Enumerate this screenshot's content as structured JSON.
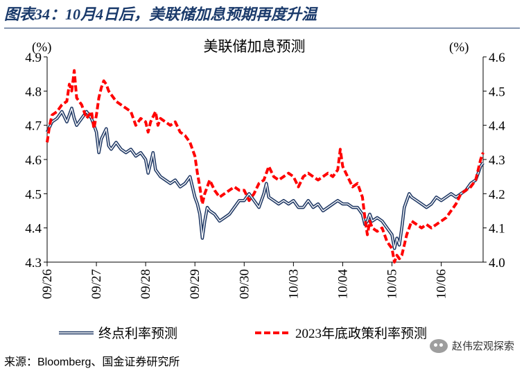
{
  "figure": {
    "title": "图表34：10月4日后，美联储加息预期再度升温",
    "source": "来源：Bloomberg、国金证券研究所",
    "watermark": "赵伟宏观探索",
    "watermark_icon": "wechat-icon"
  },
  "chart_data": {
    "type": "line",
    "title": "美联储加息预测",
    "y_left": {
      "label": "(%)",
      "ylim": [
        4.3,
        4.9
      ],
      "ticks": [
        "4.3",
        "4.4",
        "4.5",
        "4.6",
        "4.7",
        "4.8",
        "4.9"
      ]
    },
    "y_right": {
      "label": "(%)",
      "ylim": [
        4.0,
        4.6
      ],
      "ticks": [
        "4.0",
        "4.1",
        "4.2",
        "4.3",
        "4.4",
        "4.5",
        "4.6"
      ]
    },
    "x_categories": [
      "09/26",
      "09/27",
      "09/28",
      "09/29",
      "09/30",
      "10/03",
      "10/04",
      "10/05",
      "10/06"
    ],
    "x_range": [
      0,
      8.85
    ],
    "grid": false,
    "legend_placement": "bottom",
    "series": [
      {
        "name": "终点利率预测",
        "axis": "left",
        "color": "#1f3864",
        "style": "double-line",
        "points": [
          [
            0.0,
            4.68
          ],
          [
            0.1,
            4.71
          ],
          [
            0.2,
            4.72
          ],
          [
            0.3,
            4.74
          ],
          [
            0.4,
            4.71
          ],
          [
            0.5,
            4.75
          ],
          [
            0.55,
            4.72
          ],
          [
            0.6,
            4.7
          ],
          [
            0.7,
            4.72
          ],
          [
            0.8,
            4.74
          ],
          [
            0.9,
            4.72
          ],
          [
            1.0,
            4.68
          ],
          [
            1.05,
            4.62
          ],
          [
            1.1,
            4.66
          ],
          [
            1.2,
            4.69
          ],
          [
            1.25,
            4.64
          ],
          [
            1.3,
            4.63
          ],
          [
            1.4,
            4.65
          ],
          [
            1.5,
            4.63
          ],
          [
            1.6,
            4.62
          ],
          [
            1.7,
            4.63
          ],
          [
            1.8,
            4.61
          ],
          [
            1.9,
            4.62
          ],
          [
            2.0,
            4.6
          ],
          [
            2.05,
            4.56
          ],
          [
            2.1,
            4.59
          ],
          [
            2.15,
            4.62
          ],
          [
            2.2,
            4.57
          ],
          [
            2.3,
            4.55
          ],
          [
            2.4,
            4.54
          ],
          [
            2.5,
            4.53
          ],
          [
            2.6,
            4.54
          ],
          [
            2.7,
            4.52
          ],
          [
            2.8,
            4.53
          ],
          [
            2.9,
            4.55
          ],
          [
            3.0,
            4.49
          ],
          [
            3.05,
            4.47
          ],
          [
            3.1,
            4.44
          ],
          [
            3.15,
            4.37
          ],
          [
            3.2,
            4.42
          ],
          [
            3.25,
            4.46
          ],
          [
            3.3,
            4.45
          ],
          [
            3.4,
            4.44
          ],
          [
            3.5,
            4.42
          ],
          [
            3.6,
            4.43
          ],
          [
            3.7,
            4.44
          ],
          [
            3.8,
            4.46
          ],
          [
            3.9,
            4.48
          ],
          [
            4.0,
            4.48
          ],
          [
            4.1,
            4.5
          ],
          [
            4.2,
            4.48
          ],
          [
            4.3,
            4.46
          ],
          [
            4.4,
            4.5
          ],
          [
            4.45,
            4.53
          ],
          [
            4.5,
            4.49
          ],
          [
            4.6,
            4.48
          ],
          [
            4.7,
            4.47
          ],
          [
            4.8,
            4.48
          ],
          [
            4.9,
            4.47
          ],
          [
            5.0,
            4.48
          ],
          [
            5.1,
            4.46
          ],
          [
            5.2,
            4.46
          ],
          [
            5.3,
            4.48
          ],
          [
            5.4,
            4.46
          ],
          [
            5.5,
            4.47
          ],
          [
            5.6,
            4.45
          ],
          [
            5.7,
            4.46
          ],
          [
            5.8,
            4.47
          ],
          [
            5.9,
            4.48
          ],
          [
            6.0,
            4.47
          ],
          [
            6.1,
            4.47
          ],
          [
            6.2,
            4.46
          ],
          [
            6.3,
            4.46
          ],
          [
            6.4,
            4.44
          ],
          [
            6.45,
            4.41
          ],
          [
            6.5,
            4.42
          ],
          [
            6.55,
            4.44
          ],
          [
            6.6,
            4.42
          ],
          [
            6.7,
            4.43
          ],
          [
            6.8,
            4.42
          ],
          [
            6.9,
            4.4
          ],
          [
            7.0,
            4.38
          ],
          [
            7.05,
            4.34
          ],
          [
            7.1,
            4.37
          ],
          [
            7.15,
            4.35
          ],
          [
            7.2,
            4.4
          ],
          [
            7.25,
            4.46
          ],
          [
            7.3,
            4.48
          ],
          [
            7.35,
            4.5
          ],
          [
            7.4,
            4.49
          ],
          [
            7.5,
            4.48
          ],
          [
            7.6,
            4.47
          ],
          [
            7.7,
            4.46
          ],
          [
            7.8,
            4.47
          ],
          [
            7.9,
            4.49
          ],
          [
            8.0,
            4.48
          ],
          [
            8.1,
            4.49
          ],
          [
            8.2,
            4.5
          ],
          [
            8.3,
            4.49
          ],
          [
            8.4,
            4.5
          ],
          [
            8.5,
            4.51
          ],
          [
            8.6,
            4.53
          ],
          [
            8.7,
            4.54
          ],
          [
            8.75,
            4.56
          ],
          [
            8.8,
            4.58
          ],
          [
            8.85,
            4.59
          ]
        ]
      },
      {
        "name": "2023年底政策利率预测",
        "axis": "right",
        "color": "#ff0000",
        "style": "dashed",
        "points": [
          [
            0.0,
            4.35
          ],
          [
            0.05,
            4.4
          ],
          [
            0.1,
            4.43
          ],
          [
            0.2,
            4.44
          ],
          [
            0.3,
            4.46
          ],
          [
            0.4,
            4.47
          ],
          [
            0.45,
            4.52
          ],
          [
            0.5,
            4.5
          ],
          [
            0.55,
            4.56
          ],
          [
            0.6,
            4.48
          ],
          [
            0.7,
            4.46
          ],
          [
            0.8,
            4.42
          ],
          [
            0.9,
            4.44
          ],
          [
            0.95,
            4.39
          ],
          [
            1.0,
            4.43
          ],
          [
            1.05,
            4.48
          ],
          [
            1.1,
            4.51
          ],
          [
            1.15,
            4.53
          ],
          [
            1.2,
            4.52
          ],
          [
            1.25,
            4.5
          ],
          [
            1.3,
            4.49
          ],
          [
            1.4,
            4.47
          ],
          [
            1.5,
            4.46
          ],
          [
            1.6,
            4.45
          ],
          [
            1.7,
            4.44
          ],
          [
            1.8,
            4.4
          ],
          [
            1.9,
            4.42
          ],
          [
            2.0,
            4.41
          ],
          [
            2.05,
            4.38
          ],
          [
            2.1,
            4.41
          ],
          [
            2.2,
            4.44
          ],
          [
            2.25,
            4.4
          ],
          [
            2.3,
            4.42
          ],
          [
            2.4,
            4.41
          ],
          [
            2.5,
            4.4
          ],
          [
            2.6,
            4.41
          ],
          [
            2.7,
            4.38
          ],
          [
            2.8,
            4.37
          ],
          [
            2.9,
            4.35
          ],
          [
            3.0,
            4.31
          ],
          [
            3.05,
            4.26
          ],
          [
            3.1,
            4.22
          ],
          [
            3.15,
            4.17
          ],
          [
            3.2,
            4.2
          ],
          [
            3.25,
            4.22
          ],
          [
            3.3,
            4.24
          ],
          [
            3.4,
            4.21
          ],
          [
            3.5,
            4.19
          ],
          [
            3.6,
            4.2
          ],
          [
            3.7,
            4.21
          ],
          [
            3.8,
            4.22
          ],
          [
            3.9,
            4.21
          ],
          [
            4.0,
            4.21
          ],
          [
            4.1,
            4.18
          ],
          [
            4.2,
            4.2
          ],
          [
            4.3,
            4.23
          ],
          [
            4.4,
            4.24
          ],
          [
            4.5,
            4.28
          ],
          [
            4.6,
            4.25
          ],
          [
            4.7,
            4.24
          ],
          [
            4.8,
            4.25
          ],
          [
            4.9,
            4.26
          ],
          [
            5.0,
            4.25
          ],
          [
            5.1,
            4.22
          ],
          [
            5.2,
            4.25
          ],
          [
            5.3,
            4.26
          ],
          [
            5.4,
            4.25
          ],
          [
            5.5,
            4.24
          ],
          [
            5.6,
            4.25
          ],
          [
            5.7,
            4.26
          ],
          [
            5.8,
            4.25
          ],
          [
            5.9,
            4.27
          ],
          [
            5.95,
            4.33
          ],
          [
            6.0,
            4.28
          ],
          [
            6.1,
            4.25
          ],
          [
            6.2,
            4.22
          ],
          [
            6.3,
            4.23
          ],
          [
            6.4,
            4.19
          ],
          [
            6.45,
            4.13
          ],
          [
            6.5,
            4.08
          ],
          [
            6.55,
            4.12
          ],
          [
            6.6,
            4.1
          ],
          [
            6.7,
            4.09
          ],
          [
            6.8,
            4.1
          ],
          [
            6.9,
            4.06
          ],
          [
            7.0,
            4.04
          ],
          [
            7.05,
            4.0
          ],
          [
            7.1,
            4.02
          ],
          [
            7.15,
            4.01
          ],
          [
            7.2,
            4.02
          ],
          [
            7.25,
            4.05
          ],
          [
            7.3,
            4.08
          ],
          [
            7.35,
            4.1
          ],
          [
            7.4,
            4.12
          ],
          [
            7.5,
            4.11
          ],
          [
            7.6,
            4.1
          ],
          [
            7.7,
            4.11
          ],
          [
            7.8,
            4.1
          ],
          [
            7.9,
            4.11
          ],
          [
            8.0,
            4.12
          ],
          [
            8.1,
            4.13
          ],
          [
            8.2,
            4.15
          ],
          [
            8.3,
            4.17
          ],
          [
            8.4,
            4.2
          ],
          [
            8.5,
            4.21
          ],
          [
            8.6,
            4.22
          ],
          [
            8.7,
            4.24
          ],
          [
            8.75,
            4.27
          ],
          [
            8.8,
            4.3
          ],
          [
            8.85,
            4.32
          ]
        ]
      }
    ]
  }
}
